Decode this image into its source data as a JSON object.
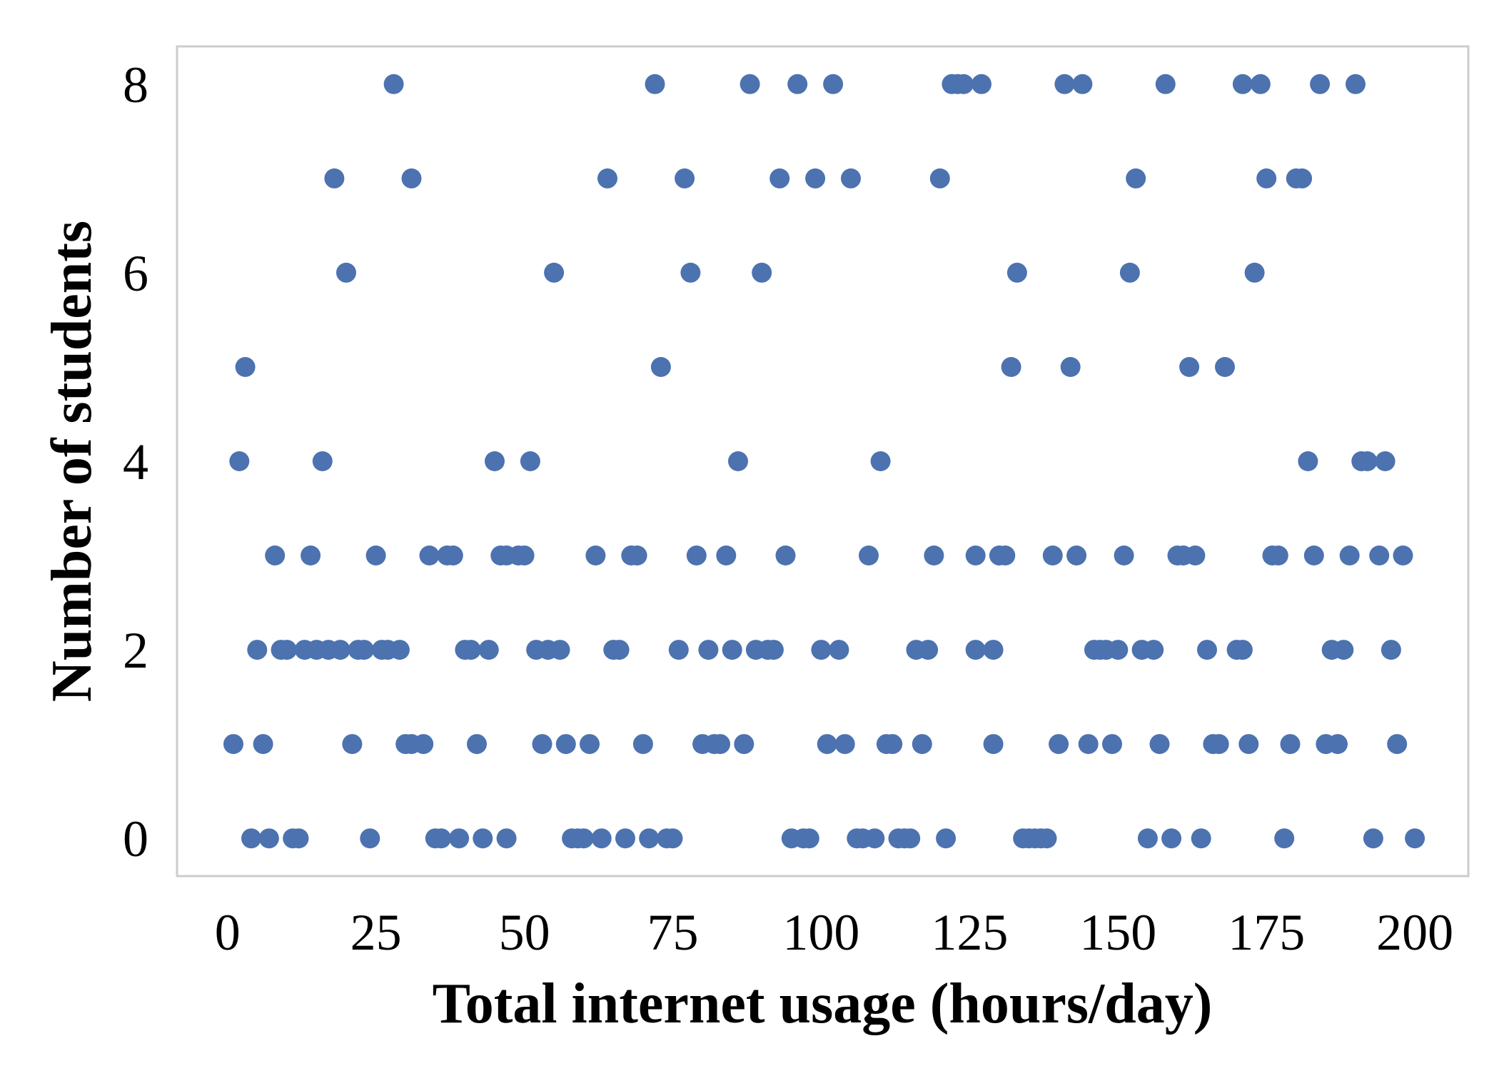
{
  "chart_data": {
    "type": "scatter",
    "title": "",
    "xlabel": "Total internet usage (hours/day)",
    "ylabel": "Number of students",
    "xlim": [
      -8.5,
      209
    ],
    "ylim": [
      -0.4,
      8.4
    ],
    "xticks": [
      0,
      25,
      50,
      75,
      100,
      125,
      150,
      175,
      200
    ],
    "yticks": [
      0,
      2,
      4,
      6,
      8
    ],
    "grid": false,
    "marker_color": "#4c72b0",
    "frame_color": "#cccccc",
    "series": [
      {
        "points": [
          [
            28,
            8
          ],
          [
            72,
            8
          ],
          [
            88,
            8
          ],
          [
            96,
            8
          ],
          [
            102,
            8
          ],
          [
            122,
            8
          ],
          [
            123,
            8
          ],
          [
            124,
            8
          ],
          [
            127,
            8
          ],
          [
            141,
            8
          ],
          [
            144,
            8
          ],
          [
            158,
            8
          ],
          [
            171,
            8
          ],
          [
            174,
            8
          ],
          [
            184,
            8
          ],
          [
            190,
            8
          ],
          [
            18,
            7
          ],
          [
            31,
            7
          ],
          [
            64,
            7
          ],
          [
            77,
            7
          ],
          [
            93,
            7
          ],
          [
            99,
            7
          ],
          [
            105,
            7
          ],
          [
            120,
            7
          ],
          [
            153,
            7
          ],
          [
            175,
            7
          ],
          [
            180,
            7
          ],
          [
            181,
            7
          ],
          [
            20,
            6
          ],
          [
            55,
            6
          ],
          [
            78,
            6
          ],
          [
            90,
            6
          ],
          [
            133,
            6
          ],
          [
            152,
            6
          ],
          [
            173,
            6
          ],
          [
            3,
            5
          ],
          [
            73,
            5
          ],
          [
            132,
            5
          ],
          [
            142,
            5
          ],
          [
            162,
            5
          ],
          [
            168,
            5
          ],
          [
            2,
            4
          ],
          [
            16,
            4
          ],
          [
            45,
            4
          ],
          [
            51,
            4
          ],
          [
            86,
            4
          ],
          [
            110,
            4
          ],
          [
            182,
            4
          ],
          [
            191,
            4
          ],
          [
            192,
            4
          ],
          [
            195,
            4
          ],
          [
            8,
            3
          ],
          [
            14,
            3
          ],
          [
            25,
            3
          ],
          [
            34,
            3
          ],
          [
            37,
            3
          ],
          [
            38,
            3
          ],
          [
            46,
            3
          ],
          [
            47,
            3
          ],
          [
            49,
            3
          ],
          [
            50,
            3
          ],
          [
            62,
            3
          ],
          [
            68,
            3
          ],
          [
            69,
            3
          ],
          [
            79,
            3
          ],
          [
            84,
            3
          ],
          [
            94,
            3
          ],
          [
            108,
            3
          ],
          [
            119,
            3
          ],
          [
            126,
            3
          ],
          [
            130,
            3
          ],
          [
            131,
            3
          ],
          [
            139,
            3
          ],
          [
            143,
            3
          ],
          [
            151,
            3
          ],
          [
            160,
            3
          ],
          [
            161,
            3
          ],
          [
            163,
            3
          ],
          [
            176,
            3
          ],
          [
            177,
            3
          ],
          [
            183,
            3
          ],
          [
            189,
            3
          ],
          [
            194,
            3
          ],
          [
            198,
            3
          ],
          [
            5,
            2
          ],
          [
            9,
            2
          ],
          [
            10,
            2
          ],
          [
            13,
            2
          ],
          [
            15,
            2
          ],
          [
            17,
            2
          ],
          [
            19,
            2
          ],
          [
            22,
            2
          ],
          [
            23,
            2
          ],
          [
            26,
            2
          ],
          [
            27,
            2
          ],
          [
            29,
            2
          ],
          [
            40,
            2
          ],
          [
            41,
            2
          ],
          [
            44,
            2
          ],
          [
            52,
            2
          ],
          [
            54,
            2
          ],
          [
            56,
            2
          ],
          [
            65,
            2
          ],
          [
            66,
            2
          ],
          [
            76,
            2
          ],
          [
            81,
            2
          ],
          [
            85,
            2
          ],
          [
            89,
            2
          ],
          [
            91,
            2
          ],
          [
            92,
            2
          ],
          [
            100,
            2
          ],
          [
            103,
            2
          ],
          [
            116,
            2
          ],
          [
            118,
            2
          ],
          [
            126,
            2
          ],
          [
            129,
            2
          ],
          [
            146,
            2
          ],
          [
            147,
            2
          ],
          [
            148,
            2
          ],
          [
            150,
            2
          ],
          [
            154,
            2
          ],
          [
            156,
            2
          ],
          [
            165,
            2
          ],
          [
            170,
            2
          ],
          [
            171,
            2
          ],
          [
            186,
            2
          ],
          [
            188,
            2
          ],
          [
            196,
            2
          ],
          [
            1,
            1
          ],
          [
            6,
            1
          ],
          [
            21,
            1
          ],
          [
            30,
            1
          ],
          [
            31,
            1
          ],
          [
            33,
            1
          ],
          [
            42,
            1
          ],
          [
            53,
            1
          ],
          [
            57,
            1
          ],
          [
            61,
            1
          ],
          [
            70,
            1
          ],
          [
            80,
            1
          ],
          [
            82,
            1
          ],
          [
            83,
            1
          ],
          [
            87,
            1
          ],
          [
            101,
            1
          ],
          [
            104,
            1
          ],
          [
            111,
            1
          ],
          [
            112,
            1
          ],
          [
            117,
            1
          ],
          [
            129,
            1
          ],
          [
            140,
            1
          ],
          [
            145,
            1
          ],
          [
            149,
            1
          ],
          [
            157,
            1
          ],
          [
            166,
            1
          ],
          [
            167,
            1
          ],
          [
            172,
            1
          ],
          [
            179,
            1
          ],
          [
            185,
            1
          ],
          [
            187,
            1
          ],
          [
            197,
            1
          ],
          [
            4,
            0
          ],
          [
            7,
            0
          ],
          [
            11,
            0
          ],
          [
            12,
            0
          ],
          [
            24,
            0
          ],
          [
            35,
            0
          ],
          [
            36,
            0
          ],
          [
            39,
            0
          ],
          [
            43,
            0
          ],
          [
            47,
            0
          ],
          [
            58,
            0
          ],
          [
            59,
            0
          ],
          [
            60,
            0
          ],
          [
            63,
            0
          ],
          [
            67,
            0
          ],
          [
            71,
            0
          ],
          [
            74,
            0
          ],
          [
            75,
            0
          ],
          [
            95,
            0
          ],
          [
            97,
            0
          ],
          [
            98,
            0
          ],
          [
            106,
            0
          ],
          [
            107,
            0
          ],
          [
            109,
            0
          ],
          [
            113,
            0
          ],
          [
            114,
            0
          ],
          [
            115,
            0
          ],
          [
            121,
            0
          ],
          [
            134,
            0
          ],
          [
            135,
            0
          ],
          [
            136,
            0
          ],
          [
            137,
            0
          ],
          [
            138,
            0
          ],
          [
            155,
            0
          ],
          [
            159,
            0
          ],
          [
            164,
            0
          ],
          [
            178,
            0
          ],
          [
            193,
            0
          ],
          [
            200,
            0
          ]
        ]
      }
    ]
  }
}
